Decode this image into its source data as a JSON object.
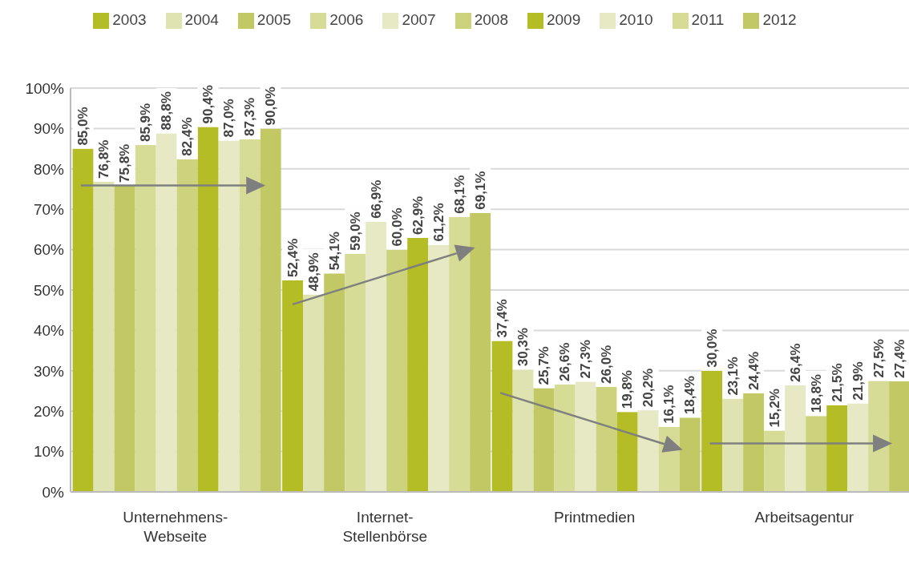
{
  "chart_data": {
    "type": "bar",
    "categories": [
      "Unternehmens-Webseite",
      "Internet-Stellenbörse",
      "Printmedien",
      "Arbeitsagentur"
    ],
    "series": [
      {
        "name": "2003",
        "color": "#b4bc26",
        "values": [
          85.0,
          52.4,
          37.4,
          30.0
        ],
        "value_labels": [
          "85,0%",
          "52,4%",
          "37,4%",
          "30,0%"
        ]
      },
      {
        "name": "2004",
        "color": "#dfe3b2",
        "values": [
          76.8,
          48.9,
          30.3,
          23.1
        ],
        "value_labels": [
          "76,8%",
          "48,9%",
          "30,3%",
          "23,1%"
        ]
      },
      {
        "name": "2005",
        "color": "#c2c964",
        "values": [
          75.8,
          54.1,
          25.7,
          24.4
        ],
        "value_labels": [
          "75,8%",
          "54,1%",
          "25,7%",
          "24,4%"
        ]
      },
      {
        "name": "2006",
        "color": "#d6dc96",
        "values": [
          85.9,
          59.0,
          26.6,
          15.2
        ],
        "value_labels": [
          "85,9%",
          "59,0%",
          "26,6%",
          "15,2%"
        ]
      },
      {
        "name": "2007",
        "color": "#e6e9c4",
        "values": [
          88.8,
          66.9,
          27.3,
          26.4
        ],
        "value_labels": [
          "88,8%",
          "66,9%",
          "27,3%",
          "26,4%"
        ]
      },
      {
        "name": "2008",
        "color": "#cdd37d",
        "values": [
          82.4,
          60.0,
          26.0,
          18.8
        ],
        "value_labels": [
          "82,4%",
          "60,0%",
          "26,0%",
          "18,8%"
        ]
      },
      {
        "name": "2009",
        "color": "#b4bc26",
        "values": [
          90.4,
          62.9,
          19.8,
          21.5
        ],
        "value_labels": [
          "90,4%",
          "62,9%",
          "19,8%",
          "21,5%"
        ]
      },
      {
        "name": "2010",
        "color": "#e6e9c4",
        "values": [
          87.0,
          61.2,
          20.2,
          21.9
        ],
        "value_labels": [
          "87,0%",
          "61,2%",
          "20,2%",
          "21,9%"
        ]
      },
      {
        "name": "2011",
        "color": "#d6dc96",
        "values": [
          87.3,
          68.1,
          16.1,
          27.5
        ],
        "value_labels": [
          "87,3%",
          "68,1%",
          "16,1%",
          "27,5%"
        ]
      },
      {
        "name": "2012",
        "color": "#c2c964",
        "values": [
          90.0,
          69.1,
          18.4,
          27.4
        ],
        "value_labels": [
          "90,0%",
          "69,1%",
          "18,4%",
          "27,4%"
        ]
      }
    ],
    "ylim": [
      0,
      100
    ],
    "yticks": [
      {
        "value": 0,
        "label": "0%"
      },
      {
        "value": 10,
        "label": "10%"
      },
      {
        "value": 20,
        "label": "20%"
      },
      {
        "value": 30,
        "label": "30%"
      },
      {
        "value": 40,
        "label": "40%"
      },
      {
        "value": 50,
        "label": "50%"
      },
      {
        "value": 60,
        "label": "60%"
      },
      {
        "value": 70,
        "label": "70%"
      },
      {
        "value": 80,
        "label": "80%"
      },
      {
        "value": 90,
        "label": "90%"
      },
      {
        "value": 100,
        "label": "100%"
      }
    ],
    "grid": "y",
    "legend": "top"
  }
}
